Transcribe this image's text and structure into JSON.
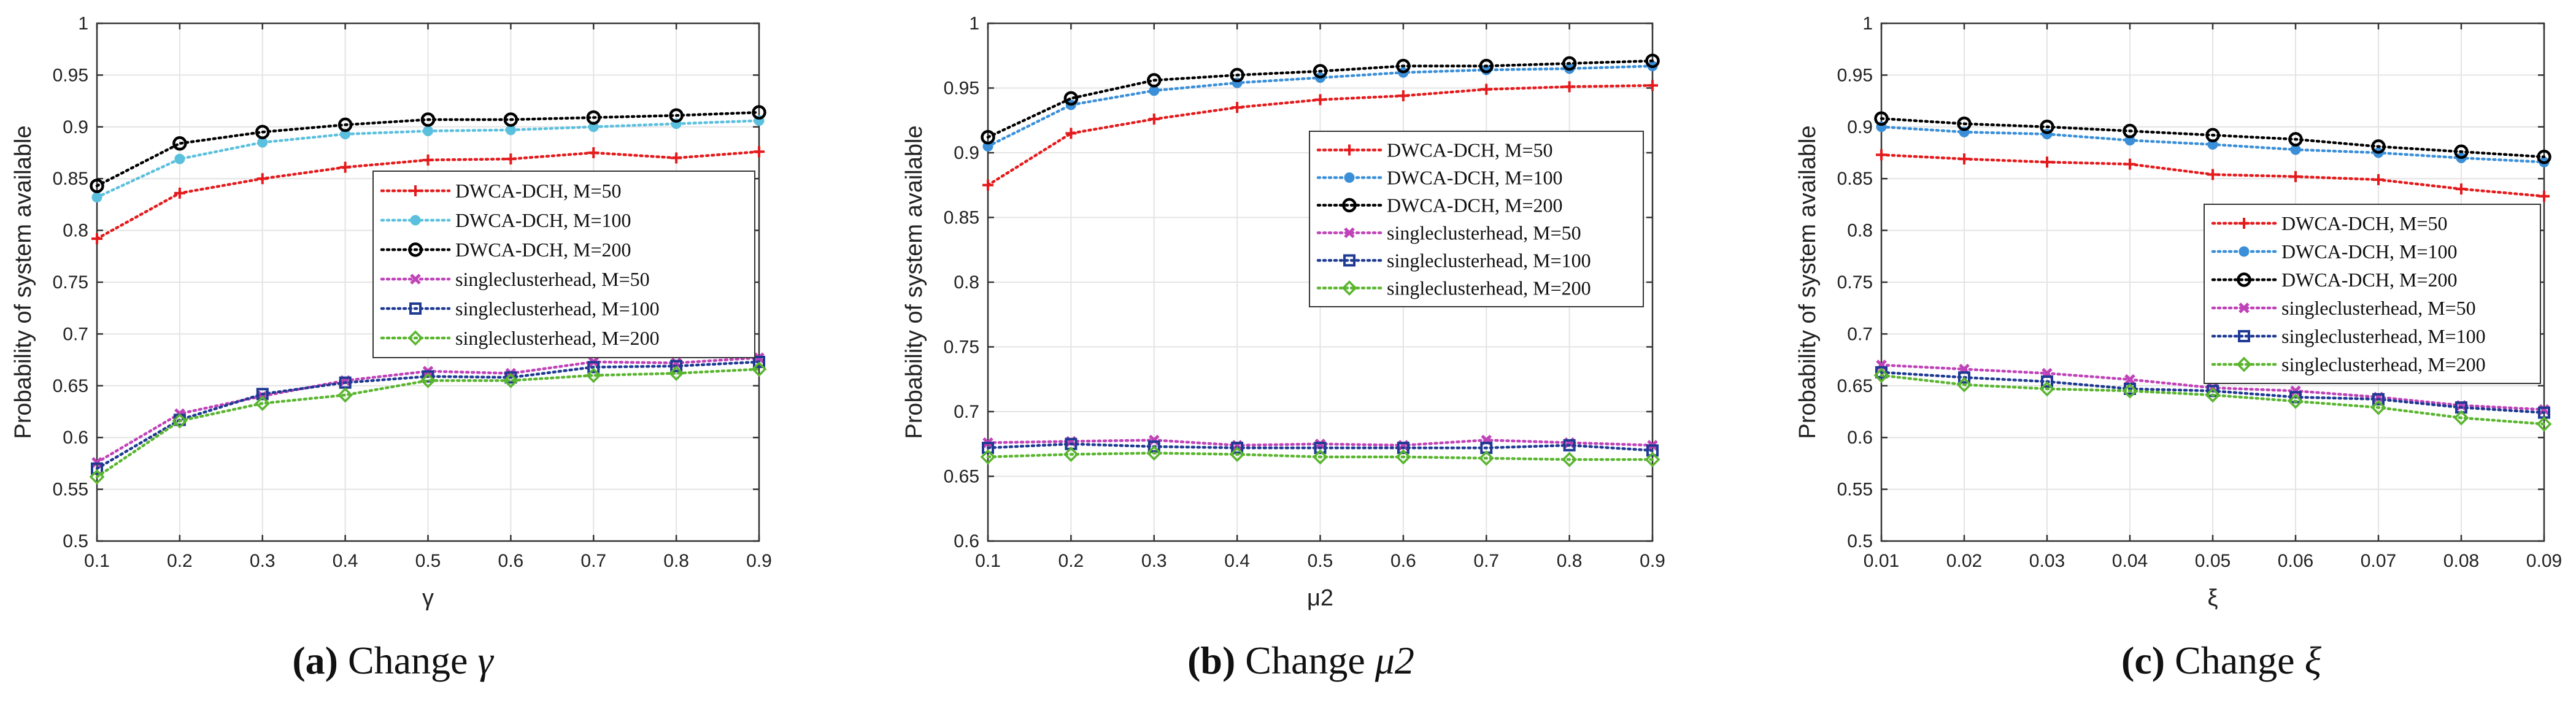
{
  "chart_data": [
    {
      "type": "line",
      "panel_label": "(a)",
      "caption": "Change",
      "caption_symbol": "γ",
      "xlabel": "γ",
      "ylabel": "Probability of system available",
      "x": [
        0.1,
        0.2,
        0.3,
        0.4,
        0.5,
        0.6,
        0.7,
        0.8,
        0.9
      ],
      "xticklabels": [
        "0.1",
        "0.2",
        "0.3",
        "0.4",
        "0.5",
        "0.6",
        "0.7",
        "0.8",
        "0.9"
      ],
      "xlim": [
        0.1,
        0.9
      ],
      "yticks": [
        0.5,
        0.55,
        0.6,
        0.65,
        0.7,
        0.75,
        0.8,
        0.85,
        0.9,
        0.95,
        1
      ],
      "yticklabels": [
        "0.5",
        "0.55",
        "0.6",
        "0.65",
        "0.7",
        "0.75",
        "0.8",
        "0.85",
        "0.9",
        "0.95",
        "1"
      ],
      "ylim": [
        0.5,
        1
      ],
      "grid": true,
      "legend_position": "middle-right",
      "series": [
        {
          "name": "DWCA-DCH, M=50",
          "color": "#e41a1c",
          "marker": "plus",
          "values": [
            0.792,
            0.836,
            0.85,
            0.861,
            0.868,
            0.869,
            0.875,
            0.87,
            0.876
          ]
        },
        {
          "name": "DWCA-DCH, M=100",
          "color": "#5bc0de",
          "marker": "dot",
          "values": [
            0.832,
            0.869,
            0.885,
            0.893,
            0.896,
            0.897,
            0.9,
            0.903,
            0.906
          ]
        },
        {
          "name": "DWCA-DCH, M=200",
          "color": "#000000",
          "marker": "circle",
          "values": [
            0.843,
            0.884,
            0.895,
            0.902,
            0.907,
            0.907,
            0.909,
            0.911,
            0.914
          ]
        },
        {
          "name": "singleclusterhead, M=50",
          "color": "#c042b8",
          "marker": "cross",
          "values": [
            0.576,
            0.623,
            0.64,
            0.655,
            0.664,
            0.662,
            0.673,
            0.672,
            0.677
          ]
        },
        {
          "name": "singleclusterhead, M=100",
          "color": "#1f3a93",
          "marker": "square",
          "values": [
            0.57,
            0.617,
            0.642,
            0.653,
            0.659,
            0.658,
            0.668,
            0.669,
            0.673
          ]
        },
        {
          "name": "singleclusterhead, M=200",
          "color": "#5ab52f",
          "marker": "diamond",
          "values": [
            0.562,
            0.616,
            0.633,
            0.641,
            0.655,
            0.655,
            0.66,
            0.662,
            0.666
          ]
        }
      ]
    },
    {
      "type": "line",
      "panel_label": "(b)",
      "caption": "Change",
      "caption_symbol": "μ2",
      "xlabel": "μ2",
      "ylabel": "Probability of system available",
      "x": [
        0.1,
        0.2,
        0.3,
        0.4,
        0.5,
        0.6,
        0.7,
        0.8,
        0.9
      ],
      "xticklabels": [
        "0.1",
        "0.2",
        "0.3",
        "0.4",
        "0.5",
        "0.6",
        "0.7",
        "0.8",
        "0.9"
      ],
      "xlim": [
        0.1,
        0.9
      ],
      "yticks": [
        0.6,
        0.65,
        0.7,
        0.75,
        0.8,
        0.85,
        0.9,
        0.95,
        1
      ],
      "yticklabels": [
        "0.6",
        "0.65",
        "0.7",
        "0.75",
        "0.8",
        "0.85",
        "0.9",
        "0.95",
        "1"
      ],
      "ylim": [
        0.6,
        1
      ],
      "grid": true,
      "legend_position": "middle-right",
      "series": [
        {
          "name": "DWCA-DCH, M=50",
          "color": "#e41a1c",
          "marker": "plus",
          "values": [
            0.875,
            0.915,
            0.926,
            0.935,
            0.941,
            0.944,
            0.949,
            0.951,
            0.952
          ]
        },
        {
          "name": "DWCA-DCH, M=100",
          "color": "#3a8fd8",
          "marker": "dot",
          "values": [
            0.905,
            0.937,
            0.948,
            0.954,
            0.958,
            0.962,
            0.964,
            0.965,
            0.967
          ]
        },
        {
          "name": "DWCA-DCH, M=200",
          "color": "#000000",
          "marker": "circle",
          "values": [
            0.912,
            0.942,
            0.956,
            0.96,
            0.963,
            0.967,
            0.967,
            0.969,
            0.971
          ]
        },
        {
          "name": "singleclusterhead, M=50",
          "color": "#c042b8",
          "marker": "cross",
          "values": [
            0.676,
            0.677,
            0.678,
            0.674,
            0.675,
            0.674,
            0.678,
            0.676,
            0.674
          ]
        },
        {
          "name": "singleclusterhead, M=100",
          "color": "#1f3a93",
          "marker": "square",
          "values": [
            0.672,
            0.675,
            0.673,
            0.672,
            0.672,
            0.672,
            0.672,
            0.674,
            0.67
          ]
        },
        {
          "name": "singleclusterhead, M=200",
          "color": "#5ab52f",
          "marker": "diamond",
          "values": [
            0.665,
            0.667,
            0.668,
            0.667,
            0.665,
            0.665,
            0.664,
            0.663,
            0.663
          ]
        }
      ]
    },
    {
      "type": "line",
      "panel_label": "(c)",
      "caption": "Change",
      "caption_symbol": "ξ",
      "xlabel": "ξ",
      "ylabel": "Probability of system available",
      "x": [
        0.01,
        0.02,
        0.03,
        0.04,
        0.05,
        0.06,
        0.07,
        0.08,
        0.09
      ],
      "xticklabels": [
        "0.01",
        "0.02",
        "0.03",
        "0.04",
        "0.05",
        "0.06",
        "0.07",
        "0.08",
        "0.09"
      ],
      "xlim": [
        0.01,
        0.09
      ],
      "yticks": [
        0.5,
        0.55,
        0.6,
        0.65,
        0.7,
        0.75,
        0.8,
        0.85,
        0.9,
        0.95,
        1
      ],
      "yticklabels": [
        "0.5",
        "0.55",
        "0.6",
        "0.65",
        "0.7",
        "0.75",
        "0.8",
        "0.85",
        "0.9",
        "0.95",
        "1"
      ],
      "ylim": [
        0.5,
        1
      ],
      "grid": true,
      "legend_position": "middle-right",
      "series": [
        {
          "name": "DWCA-DCH, M=50",
          "color": "#e41a1c",
          "marker": "plus",
          "values": [
            0.873,
            0.869,
            0.866,
            0.864,
            0.854,
            0.852,
            0.849,
            0.84,
            0.833
          ]
        },
        {
          "name": "DWCA-DCH, M=100",
          "color": "#3a8fd8",
          "marker": "dot",
          "values": [
            0.9,
            0.895,
            0.893,
            0.887,
            0.883,
            0.878,
            0.875,
            0.87,
            0.866
          ]
        },
        {
          "name": "DWCA-DCH, M=200",
          "color": "#000000",
          "marker": "circle",
          "values": [
            0.908,
            0.903,
            0.9,
            0.896,
            0.892,
            0.888,
            0.881,
            0.876,
            0.871
          ]
        },
        {
          "name": "singleclusterhead, M=50",
          "color": "#c042b8",
          "marker": "cross",
          "values": [
            0.67,
            0.666,
            0.662,
            0.656,
            0.648,
            0.645,
            0.639,
            0.631,
            0.627
          ]
        },
        {
          "name": "singleclusterhead, M=100",
          "color": "#1f3a93",
          "marker": "square",
          "values": [
            0.663,
            0.658,
            0.654,
            0.647,
            0.645,
            0.639,
            0.637,
            0.629,
            0.624
          ]
        },
        {
          "name": "singleclusterhead, M=200",
          "color": "#5ab52f",
          "marker": "diamond",
          "values": [
            0.66,
            0.651,
            0.647,
            0.645,
            0.641,
            0.635,
            0.629,
            0.619,
            0.613
          ]
        }
      ]
    }
  ]
}
